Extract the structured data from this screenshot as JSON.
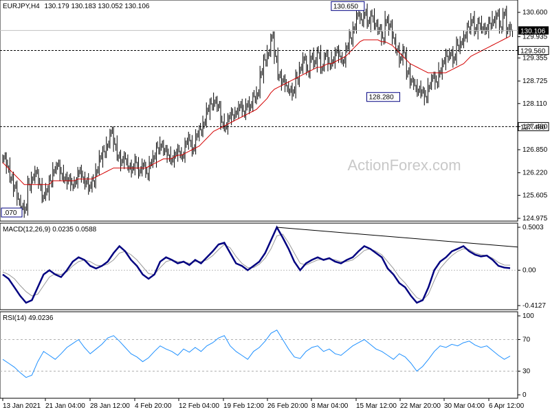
{
  "header": {
    "symbol": "EURJPY,H4",
    "ohlc": "130.179 130.183 130.052 130.106"
  },
  "watermark": "ActionForex.com",
  "colors": {
    "candle": "#000000",
    "ma": "#d40000",
    "macd": "#000080",
    "signal": "#999999",
    "rsi": "#1e90ff",
    "box": "#000080"
  },
  "chart_data": [
    {
      "type": "line",
      "name": "price",
      "ylim": [
        124.975,
        130.6
      ],
      "y_ticks": [
        "130.600",
        "129.935",
        "129.355",
        "128.725",
        "128.110",
        "127.480",
        "126.850",
        "126.220",
        "125.605",
        "124.975"
      ],
      "current_price_label": "130.106",
      "horizontal_levels": [
        {
          "label": "129.560",
          "value": 129.56
        },
        {
          "label": "127.480",
          "value": 127.48
        }
      ],
      "annotations": [
        {
          "text": "130.650",
          "x": "15 Mar 04:00",
          "y": 130.65
        },
        {
          "text": "128.280",
          "x": "22 Mar 20:00",
          "y": 128.28
        },
        {
          "text": ".070",
          "x": "13 Jan 2021",
          "y": 125.07
        }
      ],
      "close_series": [
        126.6,
        126.4,
        126.1,
        125.8,
        125.5,
        125.3,
        125.2,
        125.9,
        126.1,
        126.2,
        125.9,
        125.6,
        125.7,
        126.0,
        126.3,
        126.4,
        126.2,
        126.1,
        126.0,
        125.9,
        126.0,
        126.2,
        126.1,
        126.0,
        125.8,
        126.0,
        126.3,
        126.6,
        126.8,
        127.0,
        127.3,
        127.0,
        126.7,
        126.5,
        126.6,
        126.4,
        126.3,
        126.5,
        126.3,
        126.4,
        126.2,
        126.5,
        126.6,
        126.9,
        127.0,
        126.8,
        126.7,
        126.6,
        126.7,
        126.8,
        126.7,
        127.0,
        127.1,
        126.9,
        127.2,
        127.4,
        127.6,
        127.9,
        128.1,
        128.2,
        128.0,
        127.6,
        127.5,
        127.7,
        127.8,
        127.9,
        128.0,
        127.9,
        128.1,
        128.0,
        128.3,
        128.4,
        128.9,
        129.3,
        129.5,
        129.9,
        129.4,
        128.9,
        128.7,
        128.6,
        128.5,
        128.4,
        128.8,
        129.1,
        129.3,
        129.0,
        129.4,
        129.2,
        129.5,
        129.1,
        129.4,
        129.2,
        129.3,
        129.5,
        129.4,
        129.3,
        129.6,
        129.9,
        130.2,
        130.5,
        130.4,
        130.6,
        130.3,
        130.5,
        130.3,
        130.1,
        129.9,
        130.4,
        130.2,
        129.9,
        129.6,
        129.3,
        129.5,
        129.0,
        128.7,
        128.6,
        128.5,
        128.4,
        128.3,
        128.6,
        128.8,
        128.7,
        129.0,
        129.2,
        129.4,
        129.5,
        129.3,
        129.7,
        129.8,
        129.9,
        130.2,
        130.4,
        130.1,
        130.3,
        130.2,
        130.1,
        130.3,
        130.4,
        130.5,
        130.2,
        130.6,
        130.1,
        130.106
      ],
      "ma_series": [
        126.5,
        126.4,
        126.3,
        126.2,
        126.1,
        126.0,
        125.9,
        125.9,
        125.9,
        125.9,
        125.9,
        125.9,
        125.9,
        125.9,
        126.0,
        126.0,
        126.0,
        126.0,
        126.0,
        126.0,
        126.0,
        126.05,
        126.05,
        126.05,
        126.05,
        126.05,
        126.1,
        126.15,
        126.2,
        126.25,
        126.3,
        126.35,
        126.35,
        126.35,
        126.35,
        126.35,
        126.35,
        126.35,
        126.35,
        126.35,
        126.35,
        126.4,
        126.45,
        126.5,
        126.55,
        126.6,
        126.6,
        126.6,
        126.65,
        126.7,
        126.7,
        126.75,
        126.8,
        126.85,
        126.9,
        126.95,
        127.05,
        127.15,
        127.25,
        127.35,
        127.4,
        127.45,
        127.5,
        127.55,
        127.6,
        127.65,
        127.7,
        127.75,
        127.8,
        127.85,
        127.9,
        127.95,
        128.05,
        128.15,
        128.25,
        128.4,
        128.5,
        128.55,
        128.6,
        128.65,
        128.7,
        128.75,
        128.8,
        128.85,
        128.9,
        128.95,
        129.0,
        129.05,
        129.1,
        129.1,
        129.15,
        129.2,
        129.2,
        129.25,
        129.3,
        129.35,
        129.4,
        129.5,
        129.6,
        129.7,
        129.8,
        129.85,
        129.85,
        129.85,
        129.85,
        129.85,
        129.8,
        129.8,
        129.75,
        129.7,
        129.6,
        129.5,
        129.4,
        129.3,
        129.2,
        129.15,
        129.1,
        129.05,
        129.0,
        128.95,
        128.95,
        128.95,
        128.95,
        128.95,
        128.95,
        129.0,
        129.05,
        129.1,
        129.15,
        129.2,
        129.3,
        129.4,
        129.45,
        129.5,
        129.55,
        129.6,
        129.65,
        129.7,
        129.75,
        129.8,
        129.85,
        129.9,
        129.95
      ]
    },
    {
      "type": "line",
      "name": "macd",
      "title": "MACD(12,26,9) 0.0235 0.0588",
      "ylim": [
        -0.4127,
        0.5003
      ],
      "y_ticks": [
        "0.5003",
        "0.00",
        "-0.4127"
      ],
      "macd_series": [
        -0.05,
        -0.1,
        -0.2,
        -0.3,
        -0.38,
        -0.35,
        -0.2,
        -0.05,
        0.0,
        -0.05,
        -0.08,
        0.0,
        0.1,
        0.15,
        0.12,
        0.05,
        0.02,
        0.05,
        0.1,
        0.2,
        0.28,
        0.22,
        0.12,
        0.05,
        -0.05,
        -0.1,
        -0.05,
        0.1,
        0.15,
        0.12,
        0.08,
        0.1,
        0.06,
        0.12,
        0.08,
        0.15,
        0.22,
        0.3,
        0.32,
        0.2,
        0.08,
        0.05,
        0.0,
        0.05,
        0.1,
        0.2,
        0.35,
        0.5,
        0.38,
        0.25,
        0.1,
        0.0,
        0.08,
        0.12,
        0.15,
        0.12,
        0.14,
        0.1,
        0.08,
        0.12,
        0.15,
        0.22,
        0.28,
        0.25,
        0.2,
        0.15,
        0.02,
        -0.05,
        -0.15,
        -0.2,
        -0.3,
        -0.38,
        -0.35,
        -0.2,
        0.0,
        0.1,
        0.15,
        0.22,
        0.25,
        0.28,
        0.22,
        0.18,
        0.16,
        0.17,
        0.12,
        0.05,
        0.03,
        0.0235
      ],
      "signal_series": [
        -0.02,
        -0.05,
        -0.1,
        -0.18,
        -0.25,
        -0.3,
        -0.28,
        -0.18,
        -0.08,
        -0.04,
        -0.05,
        -0.02,
        0.05,
        0.1,
        0.12,
        0.1,
        0.06,
        0.05,
        0.07,
        0.12,
        0.2,
        0.22,
        0.18,
        0.12,
        0.04,
        -0.04,
        -0.05,
        0.03,
        0.1,
        0.12,
        0.1,
        0.1,
        0.08,
        0.1,
        0.1,
        0.12,
        0.17,
        0.24,
        0.3,
        0.26,
        0.16,
        0.08,
        0.03,
        0.03,
        0.07,
        0.14,
        0.25,
        0.4,
        0.42,
        0.32,
        0.2,
        0.08,
        0.06,
        0.09,
        0.12,
        0.13,
        0.13,
        0.12,
        0.1,
        0.1,
        0.12,
        0.17,
        0.23,
        0.25,
        0.22,
        0.18,
        0.1,
        0.02,
        -0.08,
        -0.15,
        -0.24,
        -0.32,
        -0.35,
        -0.28,
        -0.12,
        0.02,
        0.1,
        0.17,
        0.22,
        0.25,
        0.24,
        0.2,
        0.18,
        0.17,
        0.14,
        0.09,
        0.06,
        0.0588
      ]
    },
    {
      "type": "line",
      "name": "rsi",
      "title": "RSI(14) 49.0236",
      "ylim": [
        0,
        100
      ],
      "y_ticks": [
        "100",
        "70",
        "30",
        "0"
      ],
      "levels": [
        70,
        30
      ],
      "rsi_series": [
        45,
        40,
        35,
        28,
        22,
        25,
        42,
        55,
        50,
        45,
        52,
        60,
        65,
        70,
        60,
        52,
        58,
        64,
        72,
        75,
        68,
        60,
        52,
        48,
        42,
        47,
        55,
        62,
        58,
        55,
        50,
        58,
        54,
        60,
        55,
        62,
        66,
        72,
        75,
        62,
        55,
        50,
        45,
        55,
        60,
        68,
        78,
        82,
        70,
        58,
        48,
        46,
        55,
        60,
        62,
        55,
        58,
        52,
        50,
        56,
        62,
        66,
        70,
        64,
        58,
        55,
        50,
        45,
        52,
        48,
        40,
        30,
        36,
        45,
        55,
        62,
        60,
        64,
        62,
        66,
        68,
        63,
        60,
        62,
        56,
        50,
        45,
        49
      ]
    },
    {
      "type": "axis",
      "name": "time-axis",
      "x_ticks": [
        "13 Jan 2021",
        "21 Jan 04:00",
        "28 Jan 12:00",
        "4 Feb 20:00",
        "12 Feb 04:00",
        "19 Feb 12:00",
        "26 Feb 20:00",
        "8 Mar 04:00",
        "15 Mar 12:00",
        "22 Mar 20:00",
        "30 Mar 04:00",
        "6 Apr 12:00"
      ]
    }
  ]
}
